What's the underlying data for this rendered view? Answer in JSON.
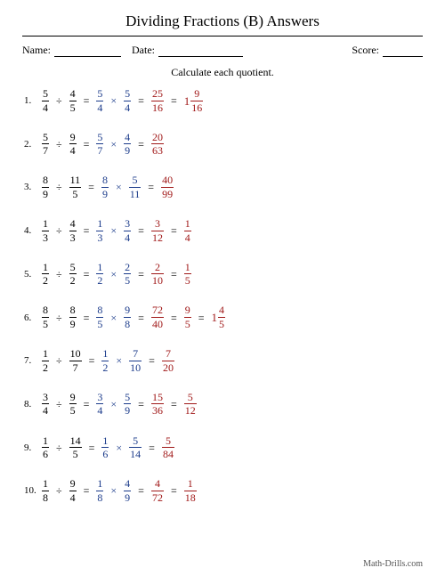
{
  "title": "Dividing Fractions (B) Answers",
  "meta": {
    "name_label": "Name:",
    "date_label": "Date:",
    "score_label": "Score:"
  },
  "instruction": "Calculate each quotient.",
  "footer": "Math-Drills.com",
  "colors": {
    "black": "#000000",
    "blue": "#1a3a8a",
    "red": "#a01818",
    "background": "#ffffff"
  },
  "underline_widths": {
    "name": 75,
    "date": 95,
    "score": 45
  },
  "problems": [
    {
      "num": "1.",
      "steps": [
        {
          "t": "div",
          "a": [
            5,
            4
          ],
          "b": [
            4,
            5
          ],
          "color": "black"
        },
        {
          "t": "mul",
          "a": [
            5,
            4
          ],
          "b": [
            5,
            4
          ],
          "color": "blue"
        },
        {
          "t": "frac",
          "v": [
            25,
            16
          ],
          "color": "red"
        },
        {
          "t": "mixed",
          "w": 1,
          "v": [
            9,
            16
          ],
          "color": "red"
        }
      ]
    },
    {
      "num": "2.",
      "steps": [
        {
          "t": "div",
          "a": [
            5,
            7
          ],
          "b": [
            9,
            4
          ],
          "color": "black"
        },
        {
          "t": "mul",
          "a": [
            5,
            7
          ],
          "b": [
            4,
            9
          ],
          "color": "blue"
        },
        {
          "t": "frac",
          "v": [
            20,
            63
          ],
          "color": "red"
        }
      ]
    },
    {
      "num": "3.",
      "steps": [
        {
          "t": "div",
          "a": [
            8,
            9
          ],
          "b": [
            11,
            5
          ],
          "color": "black"
        },
        {
          "t": "mul",
          "a": [
            8,
            9
          ],
          "b": [
            5,
            11
          ],
          "color": "blue"
        },
        {
          "t": "frac",
          "v": [
            40,
            99
          ],
          "color": "red"
        }
      ]
    },
    {
      "num": "4.",
      "steps": [
        {
          "t": "div",
          "a": [
            1,
            3
          ],
          "b": [
            4,
            3
          ],
          "color": "black"
        },
        {
          "t": "mul",
          "a": [
            1,
            3
          ],
          "b": [
            3,
            4
          ],
          "color": "blue"
        },
        {
          "t": "frac",
          "v": [
            3,
            12
          ],
          "color": "red"
        },
        {
          "t": "frac",
          "v": [
            1,
            4
          ],
          "color": "red"
        }
      ]
    },
    {
      "num": "5.",
      "steps": [
        {
          "t": "div",
          "a": [
            1,
            2
          ],
          "b": [
            5,
            2
          ],
          "color": "black"
        },
        {
          "t": "mul",
          "a": [
            1,
            2
          ],
          "b": [
            2,
            5
          ],
          "color": "blue"
        },
        {
          "t": "frac",
          "v": [
            2,
            10
          ],
          "color": "red"
        },
        {
          "t": "frac",
          "v": [
            1,
            5
          ],
          "color": "red"
        }
      ]
    },
    {
      "num": "6.",
      "steps": [
        {
          "t": "div",
          "a": [
            8,
            5
          ],
          "b": [
            8,
            9
          ],
          "color": "black"
        },
        {
          "t": "mul",
          "a": [
            8,
            5
          ],
          "b": [
            9,
            8
          ],
          "color": "blue"
        },
        {
          "t": "frac",
          "v": [
            72,
            40
          ],
          "color": "red"
        },
        {
          "t": "frac",
          "v": [
            9,
            5
          ],
          "color": "red"
        },
        {
          "t": "mixed",
          "w": 1,
          "v": [
            4,
            5
          ],
          "color": "red"
        }
      ]
    },
    {
      "num": "7.",
      "steps": [
        {
          "t": "div",
          "a": [
            1,
            2
          ],
          "b": [
            10,
            7
          ],
          "color": "black"
        },
        {
          "t": "mul",
          "a": [
            1,
            2
          ],
          "b": [
            7,
            10
          ],
          "color": "blue"
        },
        {
          "t": "frac",
          "v": [
            7,
            20
          ],
          "color": "red"
        }
      ]
    },
    {
      "num": "8.",
      "steps": [
        {
          "t": "div",
          "a": [
            3,
            4
          ],
          "b": [
            9,
            5
          ],
          "color": "black"
        },
        {
          "t": "mul",
          "a": [
            3,
            4
          ],
          "b": [
            5,
            9
          ],
          "color": "blue"
        },
        {
          "t": "frac",
          "v": [
            15,
            36
          ],
          "color": "red"
        },
        {
          "t": "frac",
          "v": [
            5,
            12
          ],
          "color": "red"
        }
      ]
    },
    {
      "num": "9.",
      "steps": [
        {
          "t": "div",
          "a": [
            1,
            6
          ],
          "b": [
            14,
            5
          ],
          "color": "black"
        },
        {
          "t": "mul",
          "a": [
            1,
            6
          ],
          "b": [
            5,
            14
          ],
          "color": "blue"
        },
        {
          "t": "frac",
          "v": [
            5,
            84
          ],
          "color": "red"
        }
      ]
    },
    {
      "num": "10.",
      "steps": [
        {
          "t": "div",
          "a": [
            1,
            8
          ],
          "b": [
            9,
            4
          ],
          "color": "black"
        },
        {
          "t": "mul",
          "a": [
            1,
            8
          ],
          "b": [
            4,
            9
          ],
          "color": "blue"
        },
        {
          "t": "frac",
          "v": [
            4,
            72
          ],
          "color": "red"
        },
        {
          "t": "frac",
          "v": [
            1,
            18
          ],
          "color": "red"
        }
      ]
    }
  ]
}
